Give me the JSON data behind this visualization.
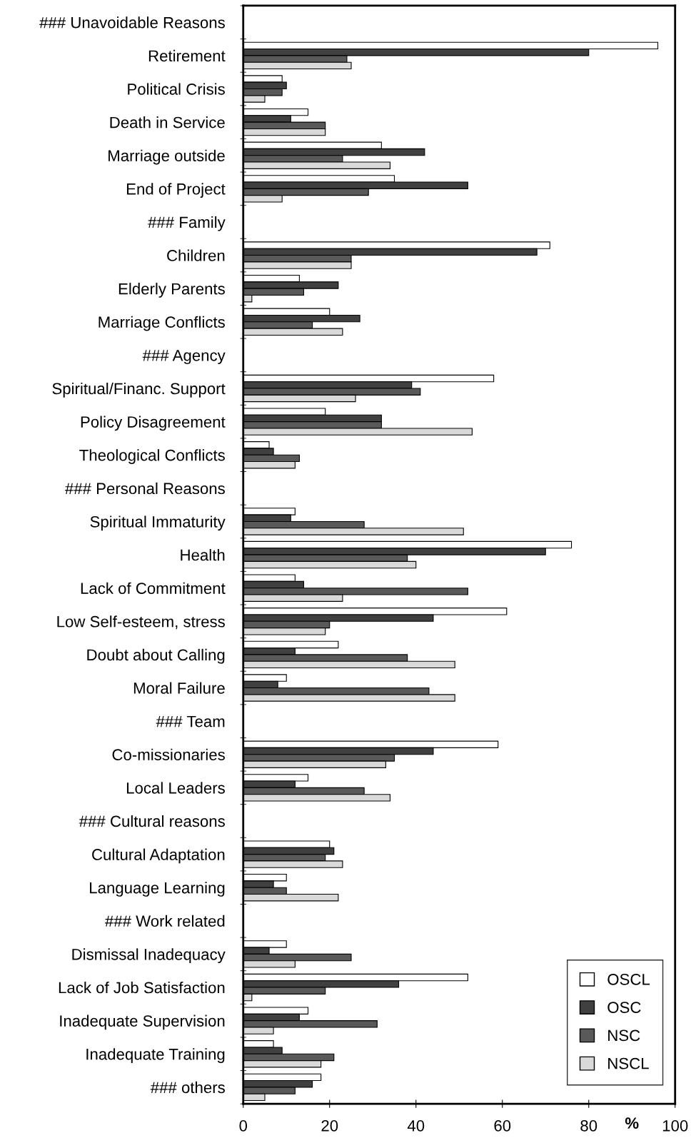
{
  "chart_data": {
    "type": "bar",
    "orientation": "horizontal",
    "categories": [
      "### Unavoidable Reasons",
      "Retirement",
      "Political Crisis",
      "Death in Service",
      "Marriage outside",
      "End of Project",
      "### Family",
      "Children",
      "Elderly Parents",
      "Marriage Conflicts",
      "### Agency",
      "Spiritual/Financ. Support",
      "Policy Disagreement",
      "Theological Conflicts",
      "### Personal Reasons",
      "Spiritual Immaturity",
      "Health",
      "Lack of Commitment",
      "Low Self-esteem, stress",
      "Doubt about Calling",
      "Moral Failure",
      "### Team",
      "Co-missionaries",
      "Local Leaders",
      "### Cultural reasons",
      "Cultural Adaptation",
      "Language Learning",
      "### Work related",
      "Dismissal Inadequacy",
      "Lack of Job Satisfaction",
      "Inadequate Supervision",
      "Inadequate Training",
      "### others"
    ],
    "series": [
      {
        "name": "OSCL",
        "color": "#ffffff",
        "values": [
          null,
          96,
          9,
          15,
          32,
          35,
          null,
          71,
          13,
          20,
          null,
          58,
          19,
          6,
          null,
          12,
          76,
          12,
          61,
          22,
          10,
          null,
          59,
          15,
          null,
          20,
          10,
          null,
          10,
          52,
          15,
          7,
          18
        ]
      },
      {
        "name": "OSC",
        "color": "#404040",
        "values": [
          null,
          80,
          10,
          11,
          42,
          52,
          null,
          68,
          22,
          27,
          null,
          39,
          32,
          7,
          null,
          11,
          70,
          14,
          44,
          12,
          8,
          null,
          44,
          12,
          null,
          21,
          7,
          null,
          6,
          36,
          13,
          9,
          16
        ]
      },
      {
        "name": "NSC",
        "color": "#595959",
        "values": [
          null,
          24,
          9,
          19,
          23,
          29,
          null,
          25,
          14,
          16,
          null,
          41,
          32,
          13,
          null,
          28,
          38,
          52,
          20,
          38,
          43,
          null,
          35,
          28,
          null,
          19,
          10,
          null,
          25,
          19,
          31,
          21,
          12
        ]
      },
      {
        "name": "NSCL",
        "color": "#d9d9d9",
        "values": [
          null,
          25,
          5,
          19,
          34,
          9,
          null,
          25,
          2,
          23,
          null,
          26,
          53,
          12,
          null,
          51,
          40,
          23,
          19,
          49,
          49,
          null,
          33,
          34,
          null,
          23,
          22,
          null,
          12,
          2,
          7,
          18,
          5
        ]
      }
    ],
    "xlabel": "%",
    "xlim": [
      0,
      100
    ],
    "xticks": [
      0,
      20,
      40,
      60,
      80,
      100
    ],
    "grid": false,
    "legend": "bottom right"
  }
}
